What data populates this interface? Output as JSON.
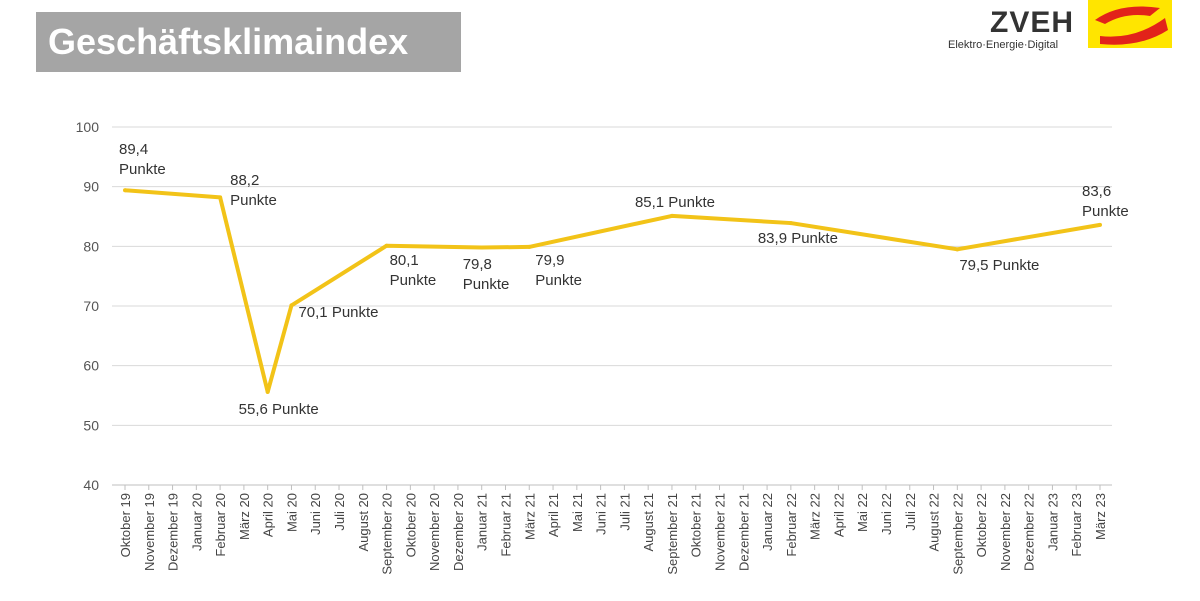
{
  "chart_data": {
    "type": "line",
    "title": "Geschäftsklimaindex",
    "logo": {
      "name": "ZVEH",
      "tagline": "Elektro·Energie·Digital"
    },
    "categories": [
      "Oktober 19",
      "November 19",
      "Dezember 19",
      "Januar 20",
      "Februar 20",
      "März 20",
      "April 20",
      "Mai 20",
      "Juni 20",
      "Juli 20",
      "August 20",
      "September 20",
      "Oktober 20",
      "November 20",
      "Dezember 20",
      "Januar 21",
      "Februar 21",
      "März 21",
      "April 21",
      "Mai 21",
      "Juni 21",
      "Juli 21",
      "August 21",
      "September 21",
      "Oktober 21",
      "November 21",
      "Dezember 21",
      "Januar 22",
      "Februar 22",
      "März 22",
      "April 22",
      "Mai 22",
      "Juni 22",
      "Juli 22",
      "August 22",
      "September 22",
      "Oktober 22",
      "November 22",
      "Dezember 22",
      "Januar 23",
      "Februar 23",
      "März 23"
    ],
    "series": [
      {
        "color": "#f2c318",
        "x": [
          "Oktober 19",
          "Februar 20",
          "April 20",
          "Mai 20",
          "September 20",
          "Januar 21",
          "März 21",
          "September 21",
          "Februar 22",
          "September 22",
          "März 23"
        ],
        "values": [
          89.4,
          88.2,
          55.6,
          70.1,
          80.1,
          79.8,
          79.9,
          85.1,
          83.9,
          79.5,
          83.6
        ],
        "value_labels": [
          "89,4\nPunkte",
          "88,2\nPunkte",
          "55,6 Punkte",
          "70,1 Punkte",
          "80,1\nPunkte",
          "79,8\nPunkte",
          "79,9\nPunkte",
          "85,1 Punkte",
          "83,9 Punkte",
          "79,5 Punkte",
          "83,6\nPunkte"
        ]
      }
    ],
    "ylim": [
      40,
      100
    ],
    "yticks": [
      40,
      50,
      60,
      70,
      80,
      90,
      100
    ],
    "grid": true
  }
}
